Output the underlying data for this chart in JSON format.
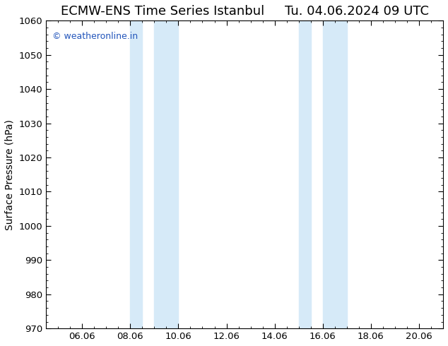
{
  "title_left": "ECMW-ENS Time Series Istanbul",
  "title_right": "Tu. 04.06.2024 09 UTC",
  "ylabel": "Surface Pressure (hPa)",
  "ylim": [
    970,
    1060
  ],
  "yticks": [
    970,
    980,
    990,
    1000,
    1010,
    1020,
    1030,
    1040,
    1050,
    1060
  ],
  "xlim_start": 4.5,
  "xlim_end": 21.0,
  "xtick_positions": [
    6.0,
    8.0,
    10.0,
    12.0,
    14.0,
    16.0,
    18.0,
    20.0
  ],
  "xtick_labels": [
    "06.06",
    "08.06",
    "10.06",
    "12.06",
    "14.06",
    "16.06",
    "18.06",
    "20.06"
  ],
  "shaded_regions": [
    {
      "x_start": 8.0,
      "x_end": 8.5
    },
    {
      "x_start": 9.0,
      "x_end": 10.0
    },
    {
      "x_start": 15.0,
      "x_end": 15.5
    },
    {
      "x_start": 16.0,
      "x_end": 17.0
    }
  ],
  "shade_color": "#d6eaf8",
  "background_color": "#ffffff",
  "watermark_text": "© weatheronline.in",
  "watermark_color": "#2255bb",
  "title_fontsize": 13,
  "label_fontsize": 10,
  "tick_fontsize": 9.5,
  "watermark_fontsize": 9
}
